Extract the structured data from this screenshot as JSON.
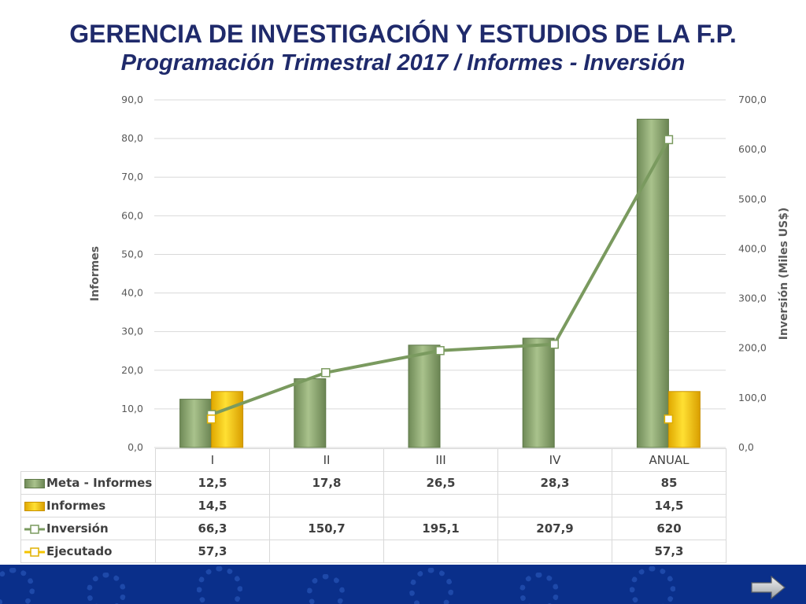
{
  "header": {
    "title": "GERENCIA DE INVESTIGACIÓN Y ESTUDIOS DE LA F.P.",
    "subtitle": "Programación Trimestral 2017 / Informes - Inversión"
  },
  "chart_data": {
    "type": "bar",
    "categories": [
      "I",
      "II",
      "III",
      "IV",
      "ANUAL"
    ],
    "ylabel": "Informes",
    "y2label": "Inversión (Miles US$)",
    "ylim": [
      0,
      90
    ],
    "y2lim": [
      0,
      700
    ],
    "yticks": [
      "0,0",
      "10,0",
      "20,0",
      "30,0",
      "40,0",
      "50,0",
      "60,0",
      "70,0",
      "80,0",
      "90,0"
    ],
    "y2ticks": [
      "0,0",
      "100,0",
      "200,0",
      "300,0",
      "400,0",
      "500,0",
      "600,0",
      "700,0"
    ],
    "grid": true,
    "series": [
      {
        "name": "Meta - Informes",
        "type": "bar",
        "axis": "left",
        "color": "#8aa66e",
        "values": [
          12.5,
          17.8,
          26.5,
          28.3,
          85
        ],
        "labels": [
          "12,5",
          "17,8",
          "26,5",
          "28,3",
          "85"
        ]
      },
      {
        "name": "Informes",
        "type": "bar",
        "axis": "left",
        "color": "#f5c400",
        "values": [
          14.5,
          null,
          null,
          null,
          14.5
        ],
        "labels": [
          "14,5",
          "",
          "",
          "",
          "14,5"
        ]
      },
      {
        "name": "Inversión",
        "type": "line",
        "axis": "right",
        "color": "#7a9a5f",
        "values": [
          66.3,
          150.7,
          195.1,
          207.9,
          620
        ],
        "labels": [
          "66,3",
          "150,7",
          "195,1",
          "207,9",
          "620"
        ]
      },
      {
        "name": "Ejecutado",
        "type": "line",
        "axis": "right",
        "color": "#f5c400",
        "values": [
          57.3,
          null,
          null,
          null,
          57.3
        ],
        "labels": [
          "57,3",
          "",
          "",
          "",
          "57,3"
        ]
      }
    ]
  },
  "footer": {
    "background_color": "#0a2f8a",
    "next_icon": "arrow-right-icon"
  }
}
